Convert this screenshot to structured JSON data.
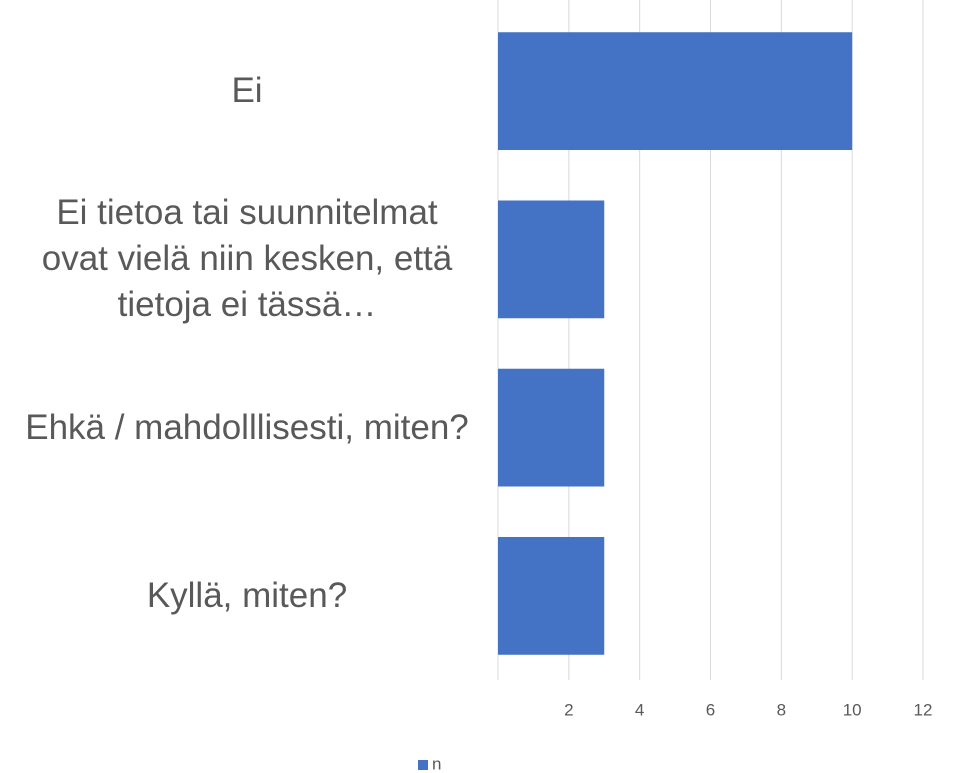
{
  "chart_data": {
    "type": "barh",
    "categories": [
      "Ei",
      "Ei tietoa tai suunnitelmat ovat vielä niin kesken, että tietoja ei tässä…",
      "Ehkä / mahdolllisesti, miten?",
      "Kyllä, miten?"
    ],
    "series": [
      {
        "name": "n",
        "color": "#4472c4",
        "values": [
          10,
          3,
          3,
          3
        ]
      }
    ],
    "xlim": [
      0,
      12
    ],
    "xticks": [
      2,
      4,
      6,
      8,
      10,
      12
    ],
    "grid": true,
    "legend": "bottom"
  }
}
